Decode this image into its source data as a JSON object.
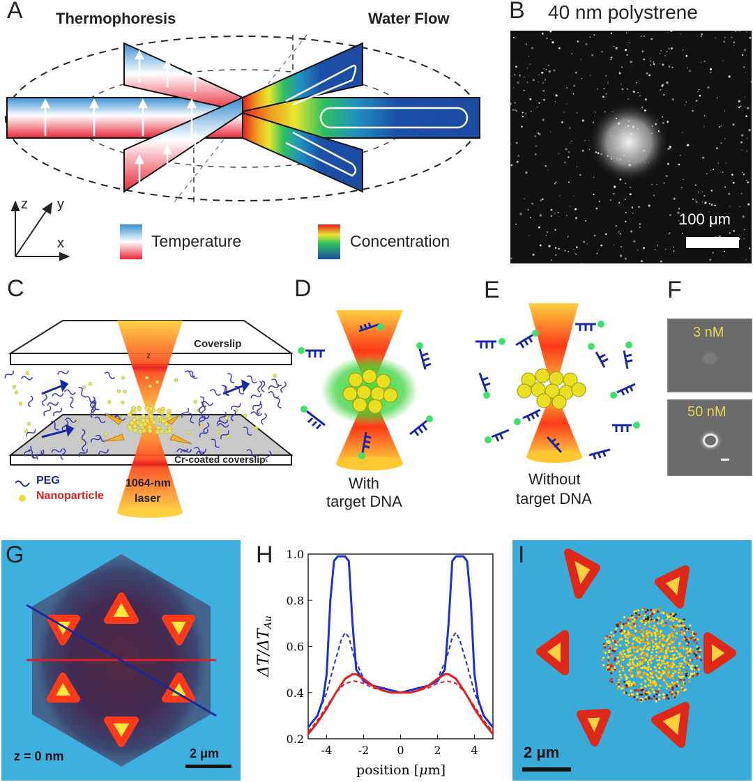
{
  "figure": {
    "panel_letters": [
      "A",
      "B",
      "C",
      "D",
      "E",
      "F",
      "G",
      "H",
      "I"
    ]
  },
  "panel_a": {
    "left_title": "Thermophoresis",
    "right_title": "Water Flow",
    "axis_z": "z",
    "axis_y": "y",
    "axis_x": "x",
    "legend_temperature": "Temperature",
    "legend_concentration": "Concentration"
  },
  "panel_b": {
    "title": "40 nm polystrene",
    "scale": "100 μm"
  },
  "panel_c": {
    "coverslip_top": "Coverslip",
    "coverslip_bottom": "Cr-coated coverslip",
    "laser_line1": "1064-nm",
    "laser_line2": "laser",
    "legend_peg": "PEG",
    "legend_nanoparticle": "Nanoparticle",
    "z_marker": "z"
  },
  "panel_d": {
    "caption_line1": "With",
    "caption_line2": "target DNA"
  },
  "panel_e": {
    "caption_line1": "Without",
    "caption_line2": "target DNA"
  },
  "panel_f": {
    "top_label": "3 nM",
    "bottom_label": "50 nM"
  },
  "panel_g": {
    "z_label": "z = 0 nm",
    "scale": "2 μm"
  },
  "panel_i": {
    "scale": "2 μm"
  },
  "chart_data": {
    "type": "line",
    "ylabel": "ΔT/ΔT_Au",
    "xlabel": "position [μm]",
    "xlim": [
      -5,
      5
    ],
    "ylim": [
      0.2,
      1.0
    ],
    "xticks": [
      "-4",
      "-2",
      "0",
      "2",
      "4"
    ],
    "yticks": [
      "0.2",
      "0.4",
      "0.6",
      "0.8",
      "1.0"
    ],
    "series": [
      {
        "style": "solid",
        "color": "#1f2fd0",
        "x": [
          -5.0,
          -4.5,
          -4.2,
          -4.0,
          -3.8,
          -3.6,
          -3.4,
          -3.2,
          -3.0,
          -2.8,
          -2.6,
          -2.4,
          -2.0,
          -1.5,
          -1.0,
          -0.5,
          0,
          0.5,
          1.0,
          1.5,
          2.0,
          2.4,
          2.6,
          2.8,
          3.0,
          3.2,
          3.4,
          3.6,
          3.8,
          4.0,
          4.2,
          4.5,
          5.0
        ],
        "y": [
          0.25,
          0.3,
          0.37,
          0.48,
          0.8,
          0.97,
          0.99,
          0.99,
          0.99,
          0.97,
          0.7,
          0.5,
          0.45,
          0.43,
          0.42,
          0.41,
          0.4,
          0.41,
          0.42,
          0.43,
          0.45,
          0.5,
          0.7,
          0.97,
          0.99,
          0.99,
          0.99,
          0.97,
          0.8,
          0.48,
          0.37,
          0.3,
          0.25
        ]
      },
      {
        "style": "dashed",
        "color": "#1f2fd0",
        "x": [
          -5.0,
          -4.5,
          -4.0,
          -3.6,
          -3.2,
          -3.0,
          -2.8,
          -2.5,
          -2.0,
          -1.5,
          -1.0,
          -0.5,
          0,
          0.5,
          1.0,
          1.5,
          2.0,
          2.5,
          2.8,
          3.0,
          3.2,
          3.6,
          4.0,
          4.5,
          5.0
        ],
        "y": [
          0.25,
          0.3,
          0.4,
          0.52,
          0.63,
          0.66,
          0.64,
          0.55,
          0.46,
          0.43,
          0.42,
          0.41,
          0.4,
          0.41,
          0.42,
          0.43,
          0.46,
          0.55,
          0.64,
          0.66,
          0.63,
          0.52,
          0.4,
          0.3,
          0.25
        ]
      },
      {
        "style": "solid",
        "color": "#e02020",
        "x": [
          -5.0,
          -4.5,
          -4.0,
          -3.5,
          -3.0,
          -2.6,
          -2.4,
          -2.2,
          -2.0,
          -1.5,
          -1.0,
          -0.5,
          0,
          0.5,
          1.0,
          1.5,
          2.0,
          2.2,
          2.4,
          2.6,
          3.0,
          3.5,
          4.0,
          4.5,
          5.0
        ],
        "y": [
          0.22,
          0.27,
          0.33,
          0.4,
          0.46,
          0.48,
          0.48,
          0.47,
          0.46,
          0.43,
          0.41,
          0.4,
          0.4,
          0.4,
          0.41,
          0.43,
          0.46,
          0.47,
          0.48,
          0.48,
          0.46,
          0.4,
          0.33,
          0.27,
          0.22
        ]
      },
      {
        "style": "dashed",
        "color": "#e02020",
        "x": [
          -5.0,
          -4.5,
          -4.0,
          -3.5,
          -3.0,
          -2.5,
          -2.0,
          -1.5,
          -1.0,
          -0.5,
          0,
          0.5,
          1.0,
          1.5,
          2.0,
          2.5,
          3.0,
          3.5,
          4.0,
          4.5,
          5.0
        ],
        "y": [
          0.23,
          0.28,
          0.34,
          0.4,
          0.44,
          0.45,
          0.44,
          0.42,
          0.41,
          0.4,
          0.4,
          0.4,
          0.41,
          0.42,
          0.44,
          0.45,
          0.44,
          0.4,
          0.34,
          0.28,
          0.23
        ]
      }
    ]
  }
}
